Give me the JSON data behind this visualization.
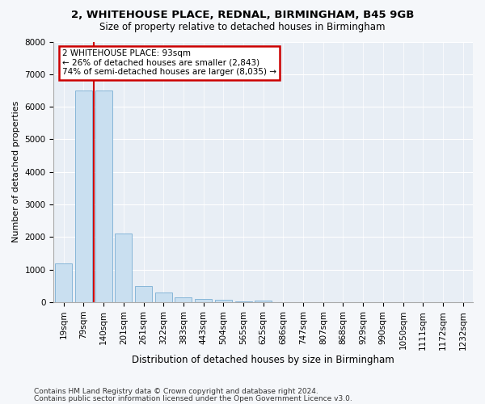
{
  "title1": "2, WHITEHOUSE PLACE, REDNAL, BIRMINGHAM, B45 9GB",
  "title2": "Size of property relative to detached houses in Birmingham",
  "xlabel": "Distribution of detached houses by size in Birmingham",
  "ylabel": "Number of detached properties",
  "categories": [
    "19sqm",
    "79sqm",
    "140sqm",
    "201sqm",
    "261sqm",
    "322sqm",
    "383sqm",
    "443sqm",
    "504sqm",
    "565sqm",
    "625sqm",
    "686sqm",
    "747sqm",
    "807sqm",
    "868sqm",
    "929sqm",
    "990sqm",
    "1050sqm",
    "1111sqm",
    "1172sqm",
    "1232sqm"
  ],
  "bar_values": [
    1200,
    6500,
    6500,
    2100,
    500,
    300,
    150,
    100,
    70,
    15,
    55,
    0,
    0,
    0,
    0,
    0,
    0,
    0,
    0,
    0,
    0
  ],
  "bar_color": "#c9dff0",
  "bar_edgecolor": "#7aafd4",
  "vline_color": "#cc0000",
  "vline_x": 1.5,
  "ylim": [
    0,
    8000
  ],
  "yticks": [
    0,
    1000,
    2000,
    3000,
    4000,
    5000,
    6000,
    7000,
    8000
  ],
  "annotation_text": "2 WHITEHOUSE PLACE: 93sqm\n← 26% of detached houses are smaller (2,843)\n74% of semi-detached houses are larger (8,035) →",
  "annotation_box_facecolor": "#ffffff",
  "annotation_box_edgecolor": "#cc0000",
  "footnote1": "Contains HM Land Registry data © Crown copyright and database right 2024.",
  "footnote2": "Contains public sector information licensed under the Open Government Licence v3.0.",
  "fig_facecolor": "#f5f7fa",
  "plot_facecolor": "#e8eef5",
  "grid_color": "#ffffff",
  "title1_fontsize": 9.5,
  "title2_fontsize": 8.5,
  "tick_fontsize": 7.5,
  "ylabel_fontsize": 8,
  "xlabel_fontsize": 8.5,
  "annotation_fontsize": 7.5,
  "footnote_fontsize": 6.5
}
